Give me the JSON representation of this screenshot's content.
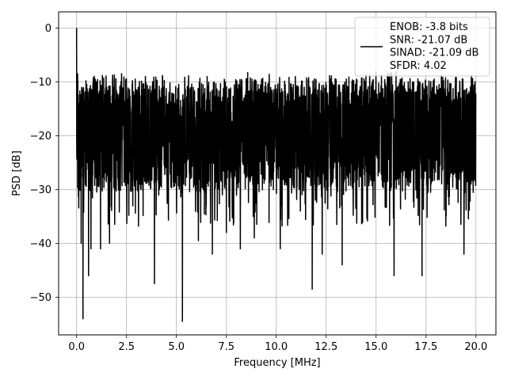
{
  "chart_data": {
    "type": "line",
    "title": "",
    "xlabel": "Frequency [MHz]",
    "ylabel": "PSD [dB]",
    "xlim": [
      -0.9,
      21.0
    ],
    "ylim": [
      -57,
      3
    ],
    "xticks": [
      0.0,
      2.5,
      5.0,
      7.5,
      10.0,
      12.5,
      15.0,
      17.5,
      20.0
    ],
    "xtick_labels": [
      "0.0",
      "2.5",
      "5.0",
      "7.5",
      "10.0",
      "12.5",
      "15.0",
      "17.5",
      "20.0"
    ],
    "yticks": [
      0,
      -10,
      -20,
      -30,
      -40,
      -50
    ],
    "ytick_labels": [
      "0",
      "−10",
      "−20",
      "−30",
      "−40",
      "−50"
    ],
    "grid": true,
    "legend_placement": "top-right",
    "line_color": "#000000",
    "series": [
      {
        "name": "ENOB: -3.8 bits",
        "description_lines": [
          "ENOB: -3.8 bits",
          "SNR: -21.07 dB",
          "SINAD: -21.09 dB",
          "SFDR: 4.02"
        ],
        "x_range": [
          0.0,
          20.0
        ],
        "baseline_level": -19,
        "noise_upper_level": -11,
        "noise_lower_level": -29,
        "peaks": [
          {
            "x": 0.0,
            "y": 0.0
          },
          {
            "x": 0.05,
            "y": -8.5
          },
          {
            "x": 0.12,
            "y": -14
          }
        ],
        "notable_dips": [
          {
            "x": 0.32,
            "y": -54
          },
          {
            "x": 0.23,
            "y": -40
          },
          {
            "x": 0.6,
            "y": -46
          },
          {
            "x": 0.72,
            "y": -41
          },
          {
            "x": 1.2,
            "y": -41
          },
          {
            "x": 1.65,
            "y": -40
          },
          {
            "x": 3.9,
            "y": -47.5
          },
          {
            "x": 5.3,
            "y": -54.5
          },
          {
            "x": 6.1,
            "y": -39.5
          },
          {
            "x": 6.8,
            "y": -42
          },
          {
            "x": 7.5,
            "y": -38
          },
          {
            "x": 8.2,
            "y": -41
          },
          {
            "x": 8.9,
            "y": -39
          },
          {
            "x": 10.2,
            "y": -41
          },
          {
            "x": 11.8,
            "y": -48.5
          },
          {
            "x": 12.3,
            "y": -42
          },
          {
            "x": 13.3,
            "y": -44
          },
          {
            "x": 15.9,
            "y": -46
          },
          {
            "x": 17.3,
            "y": -46
          },
          {
            "x": 19.4,
            "y": -42
          }
        ]
      }
    ]
  }
}
